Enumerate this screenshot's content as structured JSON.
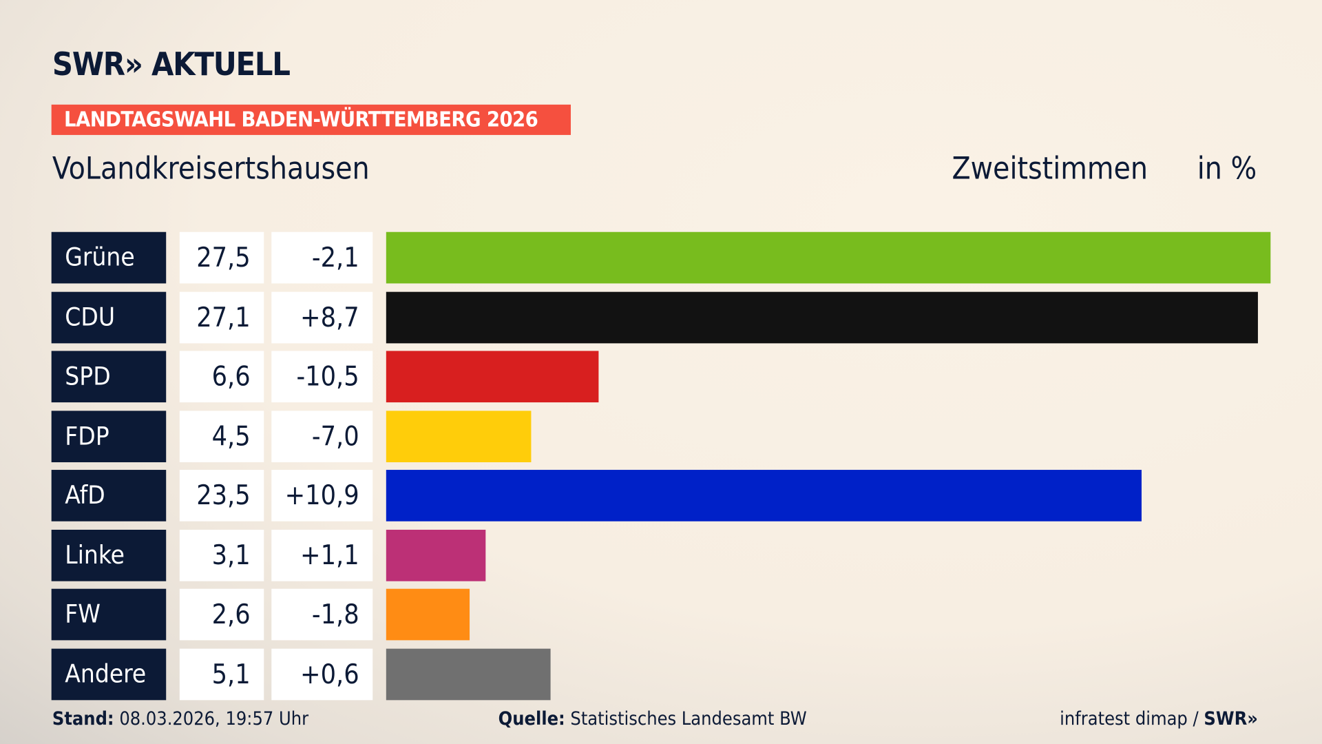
{
  "header": {
    "logo": "SWR» AKTUELL",
    "banner": "LANDTAGSWAHL BADEN-WÜRTTEMBERG 2026",
    "region": "VoLandkreisertshausen",
    "vote_type": "Zweitstimmen",
    "unit": "in %"
  },
  "chart_data": {
    "type": "bar",
    "orientation": "horizontal",
    "categories": [
      "Grüne",
      "CDU",
      "SPD",
      "FDP",
      "AfD",
      "Linke",
      "FW",
      "Andere"
    ],
    "values": [
      27.5,
      27.1,
      6.6,
      4.5,
      23.5,
      3.1,
      2.6,
      5.1
    ],
    "value_labels": [
      "27,5",
      "27,1",
      "6,6",
      "4,5",
      "23,5",
      "3,1",
      "2,6",
      "5,1"
    ],
    "diff_labels": [
      "-2,1",
      "+8,7",
      "-10,5",
      "-7,0",
      "+10,9",
      "+1,1",
      "-1,8",
      "+0,6"
    ],
    "colors": [
      "#78bc1e",
      "#121212",
      "#d81f1f",
      "#ffcd0a",
      "#0021c8",
      "#bc3076",
      "#ff8c14",
      "#707070"
    ],
    "xlim": [
      0,
      27.5
    ],
    "grid": false
  },
  "footer": {
    "stand_label": "Stand:",
    "stand_value": "08.03.2026, 19:57 Uhr",
    "source_label": "Quelle:",
    "source_value": "Statistisches Landesamt BW",
    "credit": "infratest dimap /",
    "credit_logo": "SWR»"
  }
}
